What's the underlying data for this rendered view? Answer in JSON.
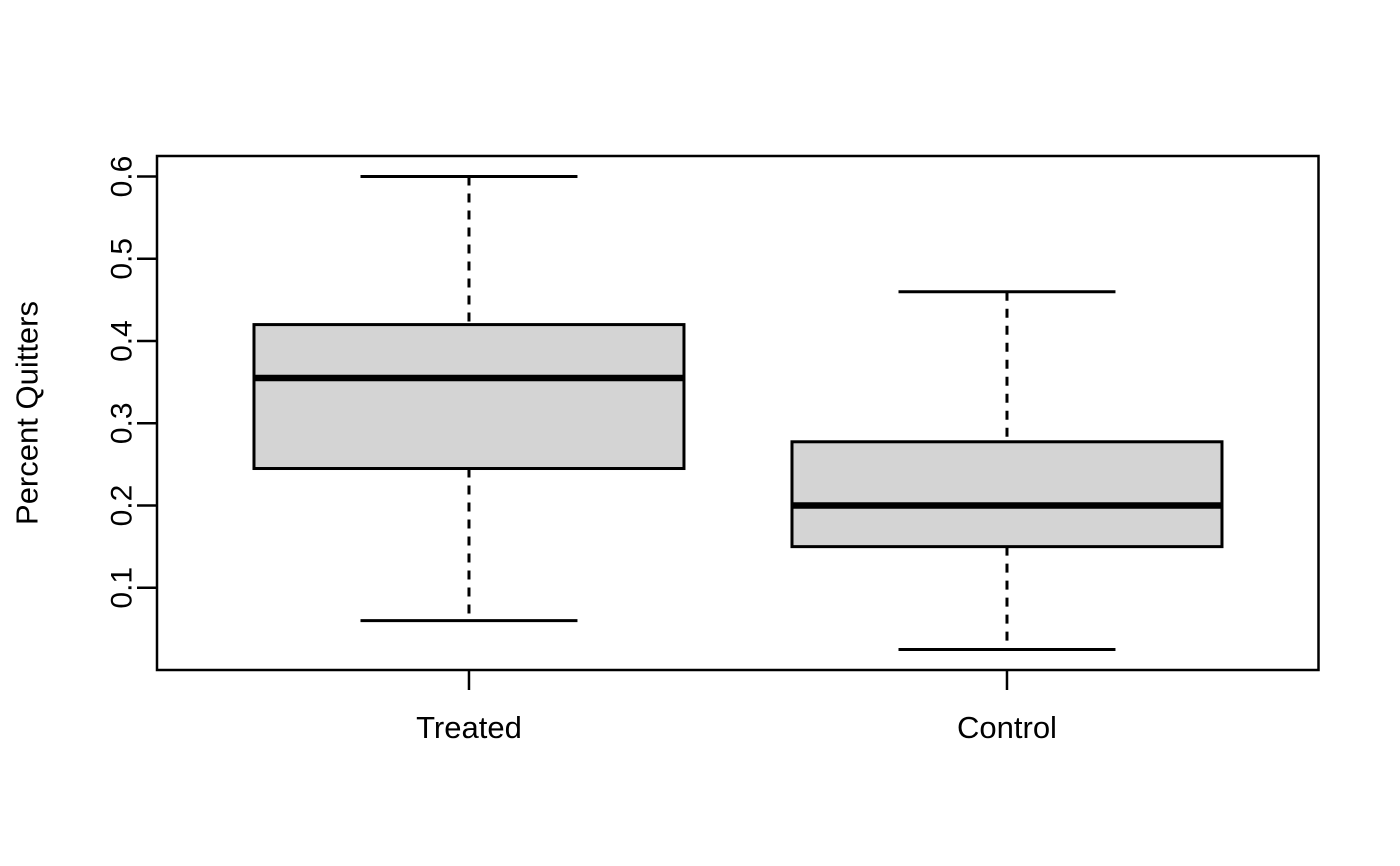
{
  "figure": {
    "background": "#ffffff",
    "kind": "R-style boxplot"
  },
  "chart_data": {
    "type": "boxplot",
    "title": "",
    "xlabel": "",
    "ylabel": "Percent Quitters",
    "categories": [
      "Treated",
      "Control"
    ],
    "boxes": [
      {
        "category": "Treated",
        "whisker_low": 0.06,
        "q1": 0.245,
        "median": 0.355,
        "q3": 0.42,
        "whisker_high": 0.6
      },
      {
        "category": "Control",
        "whisker_low": 0.025,
        "q1": 0.15,
        "median": 0.2,
        "q3": 0.2775,
        "whisker_high": 0.46
      }
    ],
    "y_axis": {
      "range": [
        0,
        0.625
      ],
      "ticks": [
        0.1,
        0.2,
        0.3,
        0.4,
        0.5,
        0.6
      ],
      "tick_labels": [
        "0.1",
        "0.2",
        "0.3",
        "0.4",
        "0.5",
        "0.6"
      ],
      "tick_label_rotation": "vertical"
    },
    "x_axis": {
      "tick_labels": [
        "Treated",
        "Control"
      ]
    },
    "layout_hints": {
      "grid": false,
      "legend": false,
      "whisker_line_style": "dashed",
      "frame": "full box around plot area"
    },
    "style": {
      "box_fill": "#d4d4d4",
      "line_color": "#000000",
      "background": "#ffffff"
    }
  }
}
